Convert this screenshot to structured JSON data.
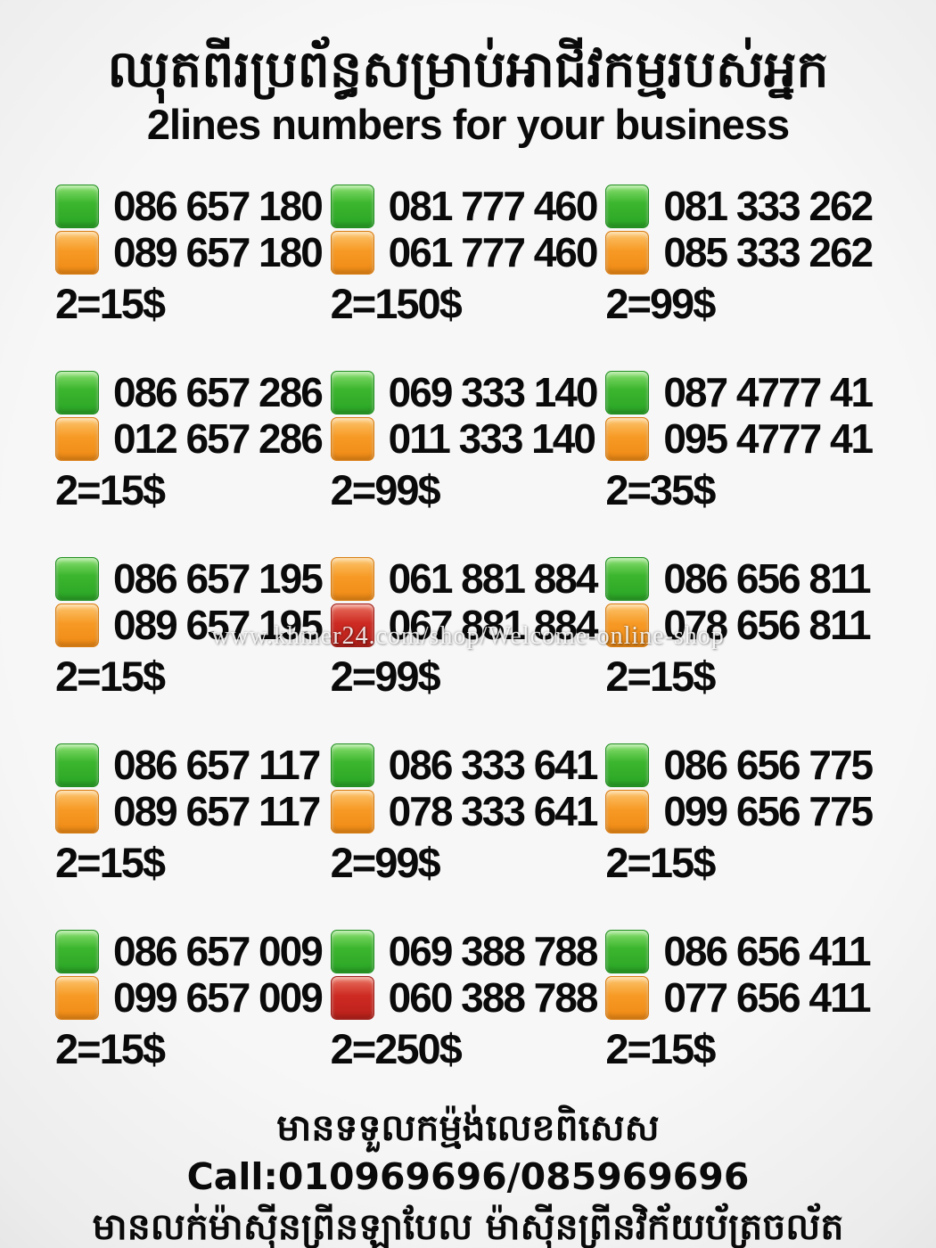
{
  "header": {
    "title_khmer": "ឈុតពីរប្រព័ន្ធសម្រាប់អាជីវកម្មរបស់អ្នក",
    "subtitle": "2lines numbers for your business"
  },
  "watermark": "www.khmer24.com/shop/Welcome-online-shop",
  "colors": {
    "green": "#3cb62e",
    "orange": "#f79a25",
    "red": "#cd2a22",
    "text": "#0a0a0a",
    "background": "#f5f5f5"
  },
  "grid": {
    "cells": [
      {
        "top": {
          "color": "green",
          "number": "086 657 180"
        },
        "bottom": {
          "color": "orange",
          "number": "089 657 180"
        },
        "price": "2=15$"
      },
      {
        "top": {
          "color": "green",
          "number": "081 777 460"
        },
        "bottom": {
          "color": "orange",
          "number": "061 777 460"
        },
        "price": "2=150$"
      },
      {
        "top": {
          "color": "green",
          "number": "081 333 262"
        },
        "bottom": {
          "color": "orange",
          "number": "085 333 262"
        },
        "price": "2=99$"
      },
      {
        "top": {
          "color": "green",
          "number": "086 657 286"
        },
        "bottom": {
          "color": "orange",
          "number": "012 657 286"
        },
        "price": "2=15$"
      },
      {
        "top": {
          "color": "green",
          "number": "069 333 140"
        },
        "bottom": {
          "color": "orange",
          "number": "011 333 140"
        },
        "price": "2=99$"
      },
      {
        "top": {
          "color": "green",
          "number": "087 4777 41"
        },
        "bottom": {
          "color": "orange",
          "number": "095 4777 41"
        },
        "price": "2=35$"
      },
      {
        "top": {
          "color": "green",
          "number": "086 657 195"
        },
        "bottom": {
          "color": "orange",
          "number": "089 657 195"
        },
        "price": "2=15$"
      },
      {
        "top": {
          "color": "orange",
          "number": "061 881 884"
        },
        "bottom": {
          "color": "red",
          "number": "067 881 884"
        },
        "price": "2=99$"
      },
      {
        "top": {
          "color": "green",
          "number": "086 656 811"
        },
        "bottom": {
          "color": "orange",
          "number": "078 656 811"
        },
        "price": "2=15$"
      },
      {
        "top": {
          "color": "green",
          "number": "086 657 117"
        },
        "bottom": {
          "color": "orange",
          "number": "089 657 117"
        },
        "price": "2=15$"
      },
      {
        "top": {
          "color": "green",
          "number": "086 333 641"
        },
        "bottom": {
          "color": "orange",
          "number": "078 333 641"
        },
        "price": "2=99$"
      },
      {
        "top": {
          "color": "green",
          "number": "086 656 775"
        },
        "bottom": {
          "color": "orange",
          "number": "099 656 775"
        },
        "price": "2=15$"
      },
      {
        "top": {
          "color": "green",
          "number": "086 657 009"
        },
        "bottom": {
          "color": "orange",
          "number": "099 657 009"
        },
        "price": "2=15$"
      },
      {
        "top": {
          "color": "green",
          "number": "069 388 788"
        },
        "bottom": {
          "color": "red",
          "number": "060 388 788"
        },
        "price": "2=250$"
      },
      {
        "top": {
          "color": "green",
          "number": "086 656 411"
        },
        "bottom": {
          "color": "orange",
          "number": "077 656 411"
        },
        "price": "2=15$"
      }
    ]
  },
  "footer": {
    "line1": "មានទទួលកម្ម៉ង់លេខពិសេស Call:010969696/085969696",
    "line2": "មានលក់ម៉ាស៊ីនព្រីនឡាបែល ម៉ាស៊ីនព្រីនវិក័យប័ត្រចល័ត"
  }
}
